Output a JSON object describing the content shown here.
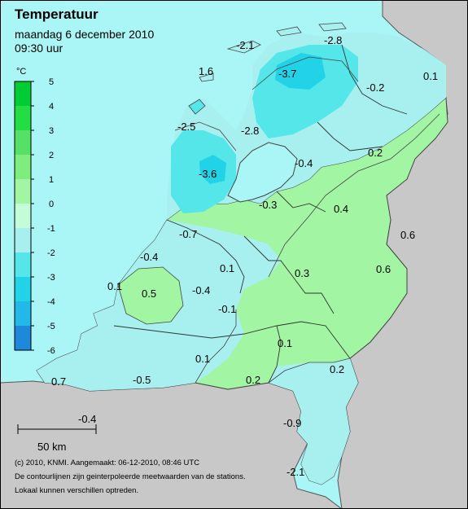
{
  "header": {
    "title": "Temperatuur",
    "date": "maandag 6 december 2010",
    "time": "09:30 uur"
  },
  "legend": {
    "unit": "°C",
    "ticks": [
      "5",
      "4",
      "3",
      "2",
      "1",
      "0",
      "-1",
      "-2",
      "-3",
      "-4",
      "-5",
      "-6"
    ],
    "colors": [
      "#00cc33",
      "#22dd44",
      "#55e066",
      "#7eed7e",
      "#a2f5a2",
      "#c4fbd8",
      "#a8f0f0",
      "#55e6ea",
      "#22d3e8",
      "#22b8e8",
      "#1fa0e2",
      "#1e88da"
    ]
  },
  "scale_bar": {
    "label": "50 km"
  },
  "credits": [
    "(c) 2010, KNMI. Aangemaakt: 06-12-2010, 08:46 UTC",
    "De contourlijnen zijn geinterpoleerde meetwaarden van de stations.",
    "Lokaal kunnen verschillen optreden."
  ],
  "stations": [
    {
      "value": "-2.1"
    },
    {
      "value": "-2.8"
    },
    {
      "value": "1.6"
    },
    {
      "value": "-3.7"
    },
    {
      "value": "0.1"
    },
    {
      "value": "-0.2"
    },
    {
      "value": "-2.5"
    },
    {
      "value": "-2.8"
    },
    {
      "value": "-3.6"
    },
    {
      "value": "-0.4"
    },
    {
      "value": "0.2"
    },
    {
      "value": "0.4"
    },
    {
      "value": "-0.3"
    },
    {
      "value": "-0.7"
    },
    {
      "value": "0.6"
    },
    {
      "value": "-0.4"
    },
    {
      "value": "0.1"
    },
    {
      "value": "0.6"
    },
    {
      "value": "0.3"
    },
    {
      "value": "0.1"
    },
    {
      "value": "0.5"
    },
    {
      "value": "-0.4"
    },
    {
      "value": "-0.1"
    },
    {
      "value": "0.1"
    },
    {
      "value": "0.1"
    },
    {
      "value": "0.2"
    },
    {
      "value": "0.7"
    },
    {
      "value": "-0.5"
    },
    {
      "value": "0.2"
    },
    {
      "value": "-0.4"
    },
    {
      "value": "-0.9"
    },
    {
      "value": "-2.1"
    }
  ]
}
